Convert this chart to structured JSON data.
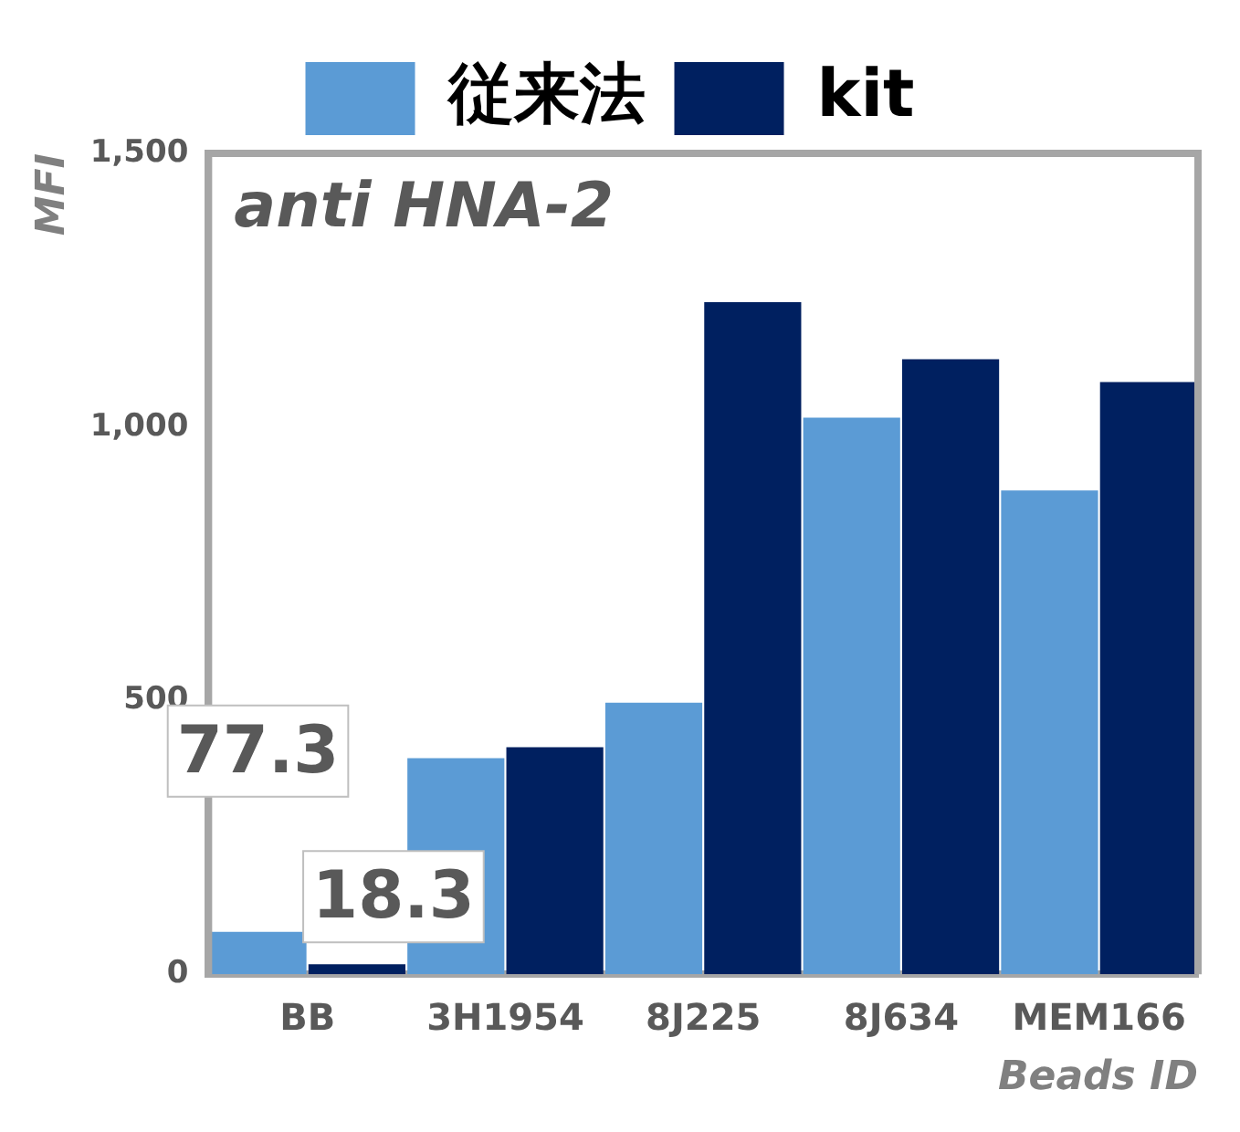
{
  "chart_data": {
    "type": "bar",
    "title": "anti HNA-2",
    "ylabel": "MFI",
    "xlabel": "Beads ID",
    "categories": [
      "BB",
      "3H1954",
      "8J225",
      "8J634",
      "MEM166"
    ],
    "series": [
      {
        "name": "従来法",
        "color": "#5b9bd5",
        "values": [
          77.3,
          395,
          496,
          1017,
          884
        ],
        "value_labels": [
          "77.3",
          null,
          null,
          null,
          null
        ]
      },
      {
        "name": "kit",
        "color": "#002060",
        "values": [
          18.3,
          415,
          1228,
          1124,
          1082
        ],
        "value_labels": [
          "18.3",
          null,
          null,
          null,
          null
        ]
      }
    ],
    "ylim": [
      0,
      1500
    ],
    "yticks": [
      0,
      500,
      {
        "value": 1000,
        "label": "1,000"
      },
      {
        "value": 1500,
        "label": "1,500"
      }
    ],
    "grid": false,
    "legend": "top"
  }
}
